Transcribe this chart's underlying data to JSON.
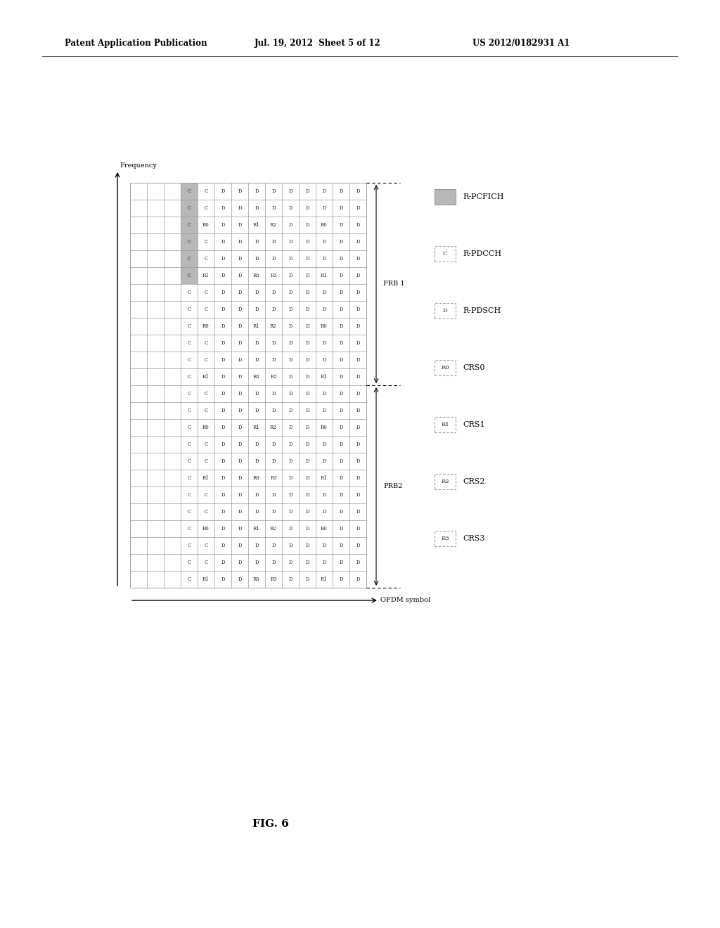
{
  "header_left": "Patent Application Publication",
  "header_mid": "Jul. 19, 2012  Sheet 5 of 12",
  "header_right": "US 2012/0182931 A1",
  "fig_label": "FIG. 6",
  "freq_label": "Frequency",
  "ofdm_label": "OFDM symbol",
  "prb1_label": "PRB 1",
  "prb2_label": "PRB2",
  "legend_items": [
    {
      "label": "R-PCFICH",
      "type": "shaded"
    },
    {
      "label": "R-PDCCH",
      "type": "C"
    },
    {
      "label": "R-PDSCH",
      "type": "D"
    },
    {
      "label": "CRS0",
      "type": "R0"
    },
    {
      "label": "CRS1",
      "type": "R1"
    },
    {
      "label": "CRS2",
      "type": "R2"
    },
    {
      "label": "CRS3",
      "type": "R3"
    }
  ],
  "num_cols": 14,
  "num_rows": 24,
  "prb1_rows": 12,
  "shaded_col": 3,
  "shaded_rows": 6,
  "background_color": "#ffffff",
  "grid_color": "#999999",
  "shaded_color": "#b8b8b8",
  "row_patterns": [
    [
      "",
      "",
      "",
      "C",
      "C",
      "D",
      "D",
      "D",
      "D",
      "D",
      "D",
      "D",
      "D",
      "D"
    ],
    [
      "",
      "",
      "",
      "C",
      "C",
      "D",
      "D",
      "D",
      "D",
      "D",
      "D",
      "D",
      "D",
      "D"
    ],
    [
      "",
      "",
      "",
      "C",
      "R0",
      "D",
      "D",
      "R1",
      "R2",
      "D",
      "D",
      "R0",
      "D",
      "D"
    ],
    [
      "",
      "",
      "",
      "C",
      "C",
      "D",
      "D",
      "D",
      "D",
      "D",
      "D",
      "D",
      "D",
      "D"
    ],
    [
      "",
      "",
      "",
      "C",
      "C",
      "D",
      "D",
      "D",
      "D",
      "D",
      "D",
      "D",
      "D",
      "D"
    ],
    [
      "",
      "",
      "",
      "C",
      "R1",
      "D",
      "D",
      "R0",
      "R3",
      "D",
      "D",
      "R1",
      "D",
      "D"
    ],
    [
      "",
      "",
      "",
      "C",
      "C",
      "D",
      "D",
      "D",
      "D",
      "D",
      "D",
      "D",
      "D",
      "D"
    ],
    [
      "",
      "",
      "",
      "C",
      "C",
      "D",
      "D",
      "D",
      "D",
      "D",
      "D",
      "D",
      "D",
      "D"
    ],
    [
      "",
      "",
      "",
      "C",
      "R0",
      "D",
      "D",
      "R1",
      "R2",
      "D",
      "D",
      "R0",
      "D",
      "D"
    ],
    [
      "",
      "",
      "",
      "C",
      "C",
      "D",
      "D",
      "D",
      "D",
      "D",
      "D",
      "D",
      "D",
      "D"
    ],
    [
      "",
      "",
      "",
      "C",
      "C",
      "D",
      "D",
      "D",
      "D",
      "D",
      "D",
      "D",
      "D",
      "D"
    ],
    [
      "",
      "",
      "",
      "C",
      "R1",
      "D",
      "D",
      "R0",
      "R3",
      "D",
      "D",
      "R1",
      "D",
      "D"
    ],
    [
      "",
      "",
      "",
      "C",
      "C",
      "D",
      "D",
      "D",
      "D",
      "D",
      "D",
      "D",
      "D",
      "D"
    ],
    [
      "",
      "",
      "",
      "C",
      "C",
      "D",
      "D",
      "D",
      "D",
      "D",
      "D",
      "D",
      "D",
      "D"
    ],
    [
      "",
      "",
      "",
      "C",
      "R0",
      "D",
      "D",
      "R1",
      "R2",
      "D",
      "D",
      "R0",
      "D",
      "D"
    ],
    [
      "",
      "",
      "",
      "C",
      "C",
      "D",
      "D",
      "D",
      "D",
      "D",
      "D",
      "D",
      "D",
      "D"
    ],
    [
      "",
      "",
      "",
      "C",
      "C",
      "D",
      "D",
      "D",
      "D",
      "D",
      "D",
      "D",
      "D",
      "D"
    ],
    [
      "",
      "",
      "",
      "C",
      "R1",
      "D",
      "D",
      "R0",
      "R3",
      "D",
      "D",
      "R1",
      "D",
      "D"
    ],
    [
      "",
      "",
      "",
      "C",
      "C",
      "D",
      "D",
      "D",
      "D",
      "D",
      "D",
      "D",
      "D",
      "D"
    ],
    [
      "",
      "",
      "",
      "C",
      "C",
      "D",
      "D",
      "D",
      "D",
      "D",
      "D",
      "D",
      "D",
      "D"
    ],
    [
      "",
      "",
      "",
      "C",
      "R0",
      "D",
      "D",
      "R1",
      "R2",
      "D",
      "D",
      "R0",
      "D",
      "D"
    ],
    [
      "",
      "",
      "",
      "C",
      "C",
      "D",
      "D",
      "D",
      "D",
      "D",
      "D",
      "D",
      "D",
      "D"
    ],
    [
      "",
      "",
      "",
      "C",
      "C",
      "D",
      "D",
      "D",
      "D",
      "D",
      "D",
      "D",
      "D",
      "D"
    ],
    [
      "",
      "",
      "",
      "C",
      "R1",
      "D",
      "D",
      "R0",
      "R3",
      "D",
      "D",
      "R1",
      "D",
      "D"
    ]
  ]
}
